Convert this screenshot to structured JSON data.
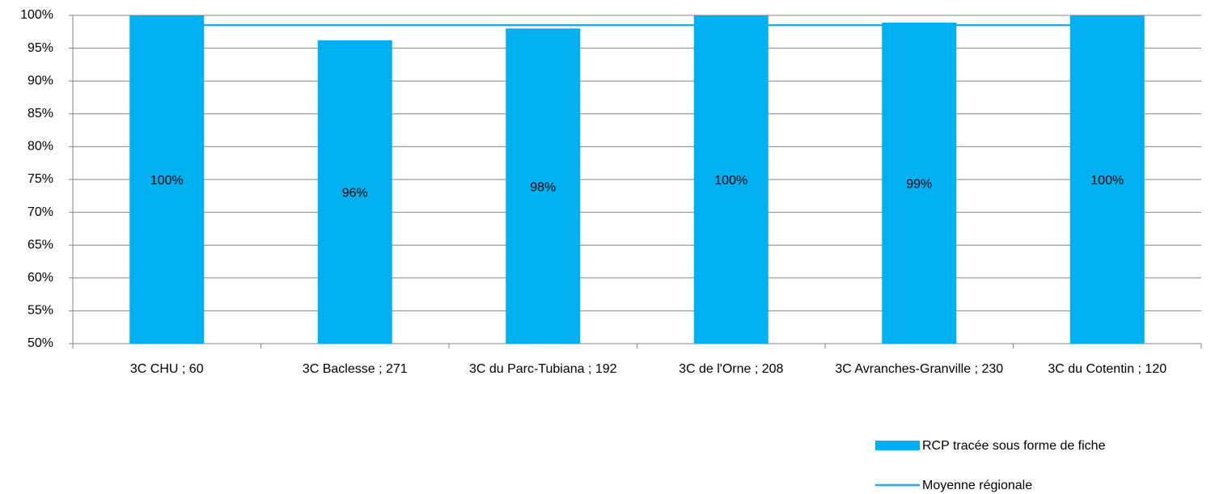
{
  "chart_data": {
    "type": "bar",
    "categories": [
      "3C CHU ; 60",
      "3C Baclesse ; 271",
      "3C du Parc-Tubiana ; 192",
      "3C de l'Orne ; 208",
      "3C Avranches-Granville ; 230",
      "3C du Cotentin ; 120"
    ],
    "series": [
      {
        "name": "RCP tracée sous forme de fiche",
        "color": "#00b0f0",
        "type": "bar",
        "values": [
          100,
          96.2,
          98,
          100,
          98.9,
          100
        ],
        "value_labels": [
          "100%",
          "96%",
          "98%",
          "100%",
          "99%",
          "100%"
        ]
      },
      {
        "name": "Moyenne régionale",
        "color": "#2aa9e0",
        "type": "line",
        "values": [
          98.5,
          98.5,
          98.5,
          98.5,
          98.5,
          98.5
        ]
      }
    ],
    "ylim": [
      50,
      100
    ],
    "yticks": [
      {
        "value": 50,
        "label": "50%"
      },
      {
        "value": 55,
        "label": "55%"
      },
      {
        "value": 60,
        "label": "60%"
      },
      {
        "value": 65,
        "label": "65%"
      },
      {
        "value": 70,
        "label": "70%"
      },
      {
        "value": 75,
        "label": "75%"
      },
      {
        "value": 80,
        "label": "80%"
      },
      {
        "value": 85,
        "label": "85%"
      },
      {
        "value": 90,
        "label": "90%"
      },
      {
        "value": 95,
        "label": "95%"
      },
      {
        "value": 100,
        "label": "100%"
      }
    ],
    "grid": true,
    "legend": "bottom-right"
  }
}
